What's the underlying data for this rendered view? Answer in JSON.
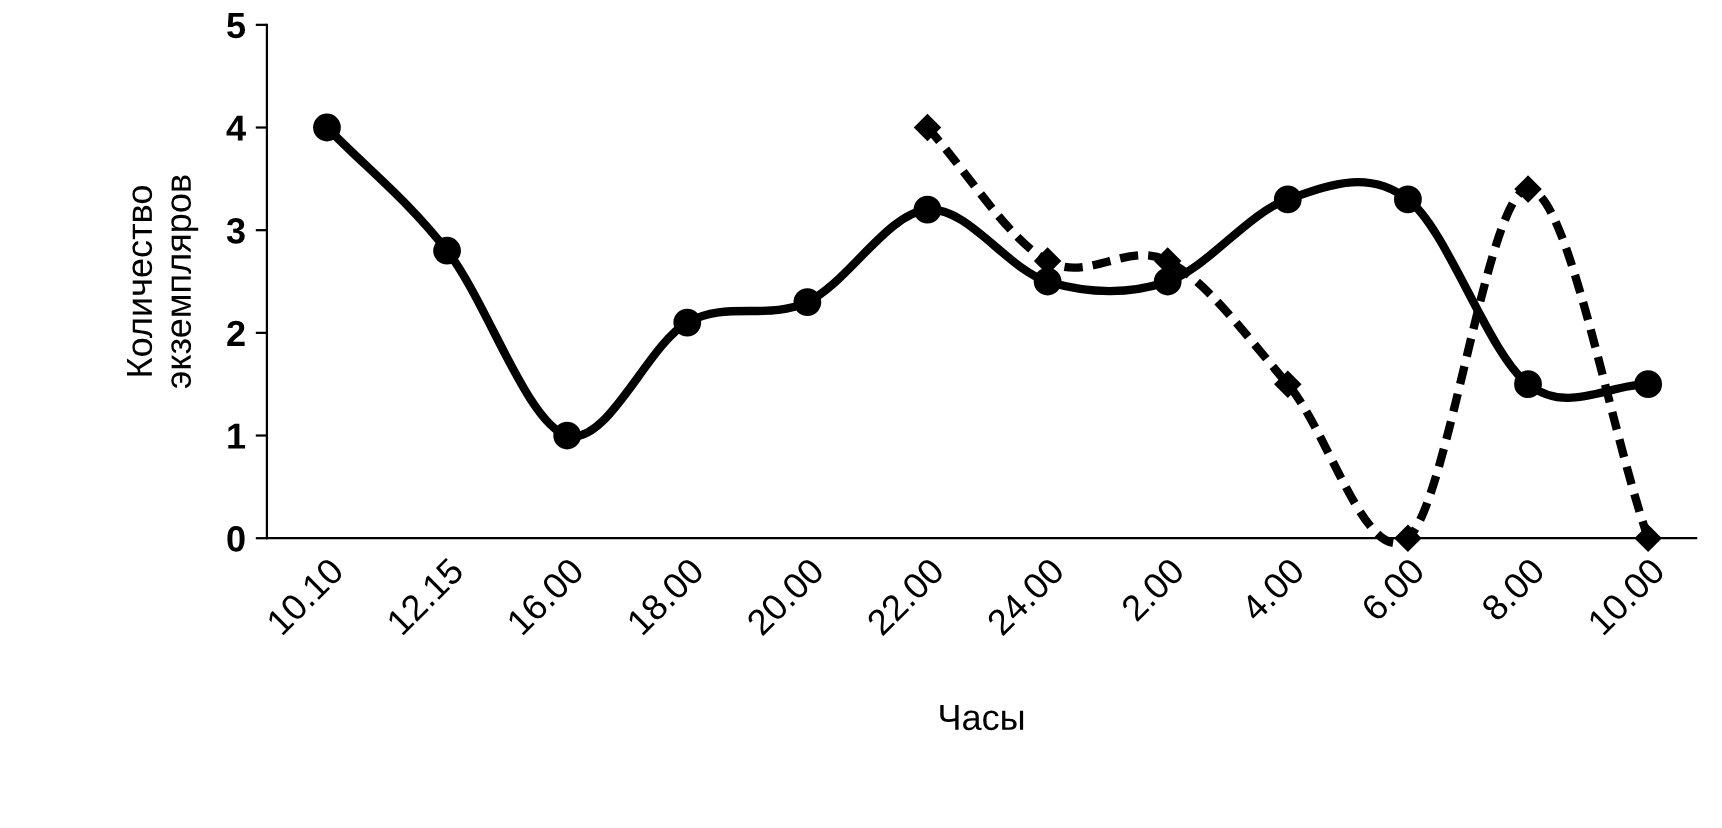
{
  "chart_data": {
    "type": "line",
    "xlabel": "Часы",
    "ylabel": "Количество\nэкземпляров",
    "categories": [
      "10.10",
      "12.15",
      "16.00",
      "18.00",
      "20.00",
      "22.00",
      "24.00",
      "2.00",
      "4.00",
      "6.00",
      "8.00",
      "10.00"
    ],
    "ylim": [
      0,
      5
    ],
    "yticks": [
      0,
      1,
      2,
      3,
      4,
      5
    ],
    "grid": false,
    "legend": false,
    "series": [
      {
        "color": "#000000",
        "marker": "circle",
        "line_style": "solid",
        "values": [
          4,
          2.8,
          1.0,
          2.1,
          2.3,
          3.2,
          2.5,
          2.5,
          3.3,
          3.3,
          1.5,
          1.5
        ]
      },
      {
        "color": "#000000",
        "marker": "diamond",
        "line_style": "dashed",
        "values": [
          null,
          null,
          null,
          null,
          null,
          4,
          2.7,
          2.7,
          1.5,
          0,
          3.4,
          0
        ]
      }
    ]
  }
}
